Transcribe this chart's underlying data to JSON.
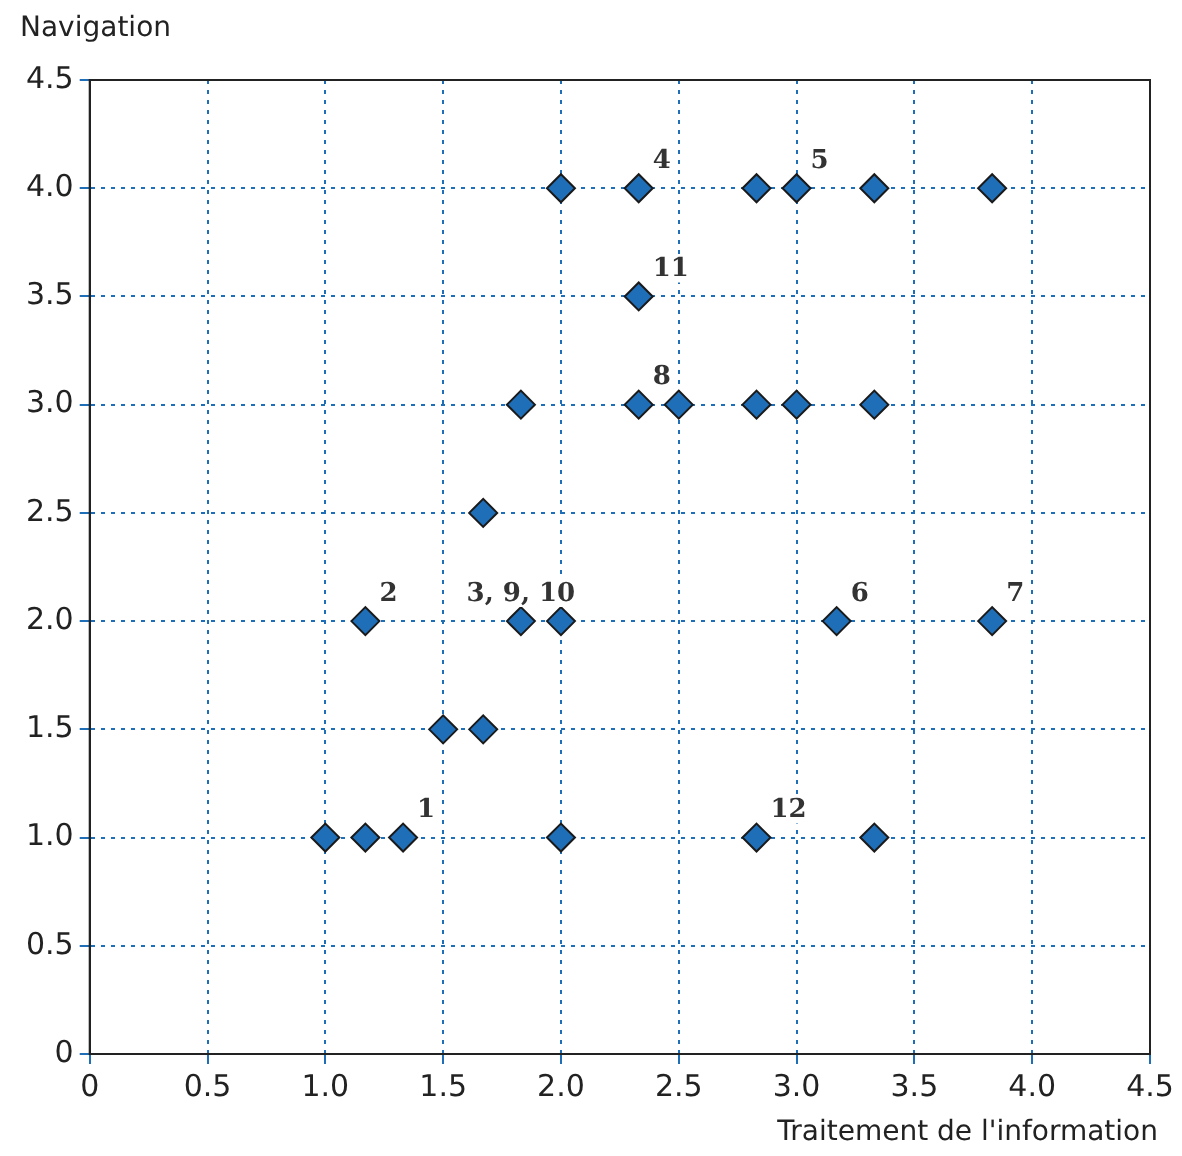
{
  "chart_data": {
    "type": "scatter",
    "xlabel": "Traitement de l'information",
    "ylabel": "Navigation",
    "x": [
      2.0,
      2.33,
      2.83,
      3.0,
      3.33,
      3.83,
      2.33,
      1.83,
      2.33,
      2.5,
      2.83,
      3.0,
      3.33,
      1.67,
      1.17,
      1.83,
      2.0,
      3.17,
      3.83,
      1.5,
      1.67,
      1.0,
      1.17,
      1.33,
      2.0,
      2.83,
      3.33
    ],
    "series": [
      {
        "color": "#1f6eb8",
        "values": [
          4,
          4,
          4,
          4,
          4,
          4,
          3.5,
          3,
          3,
          3,
          3,
          3,
          3,
          2.5,
          2,
          2,
          2,
          2,
          2,
          1.5,
          1.5,
          1,
          1,
          1,
          1,
          1,
          1
        ]
      }
    ],
    "marker": "diamond",
    "grid": true,
    "line_style": "dotted",
    "xlim": [
      0,
      4.5
    ],
    "ylim": [
      0,
      4.5
    ],
    "xticks": [
      0,
      0.5,
      {
        "value": 1,
        "label": "1.0"
      },
      1.5,
      {
        "value": 2,
        "label": "2.0"
      },
      2.5,
      {
        "value": 3,
        "label": "3.0"
      },
      3.5,
      {
        "value": 4,
        "label": "4.0"
      },
      4.5
    ],
    "yticks": [
      0,
      0.5,
      {
        "value": 1,
        "label": "1.0"
      },
      1.5,
      {
        "value": 2,
        "label": "2.0"
      },
      2.5,
      {
        "value": 3,
        "label": "3.0"
      },
      3.5,
      {
        "value": 4,
        "label": "4.0"
      },
      4.5
    ],
    "annotations": [
      {
        "text": "1",
        "x": 1.33,
        "y": 1
      },
      {
        "text": "2",
        "x": 1.17,
        "y": 2
      },
      {
        "text": "3, 9, 10",
        "x": 1.83,
        "y": 2
      },
      {
        "text": "4",
        "x": 2.33,
        "y": 4
      },
      {
        "text": "5",
        "x": 3.0,
        "y": 4
      },
      {
        "text": "6",
        "x": 3.17,
        "y": 2
      },
      {
        "text": "7",
        "x": 3.83,
        "y": 2
      },
      {
        "text": "8",
        "x": 2.33,
        "y": 3
      },
      {
        "text": "11",
        "x": 2.33,
        "y": 3.5
      },
      {
        "text": "12",
        "x": 2.83,
        "y": 1
      }
    ]
  }
}
